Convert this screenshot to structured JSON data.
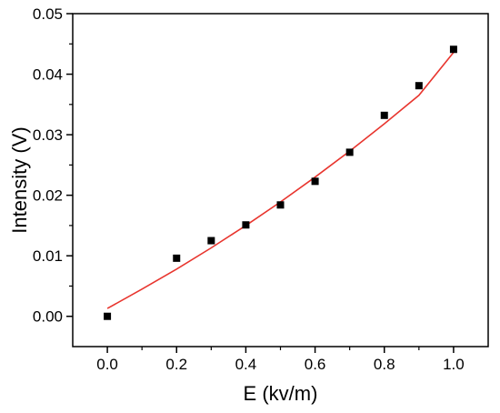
{
  "chart_data": {
    "type": "scatter",
    "xlabel": "E (kv/m)",
    "ylabel": "Intensity (V)",
    "xlim": [
      -0.1,
      1.1
    ],
    "ylim": [
      -0.005,
      0.05
    ],
    "x_ticks": [
      0.0,
      0.2,
      0.4,
      0.6,
      0.8,
      1.0
    ],
    "x_tick_labels": [
      "0.0",
      "0.2",
      "0.4",
      "0.6",
      "0.8",
      "1.0"
    ],
    "y_ticks": [
      0.0,
      0.01,
      0.02,
      0.03,
      0.04,
      0.05
    ],
    "y_tick_labels": [
      "0.00",
      "0.01",
      "0.02",
      "0.03",
      "0.04",
      "0.05"
    ],
    "grid": false,
    "points": {
      "x": [
        0.0,
        0.2,
        0.3,
        0.4,
        0.5,
        0.6,
        0.7,
        0.8,
        0.9,
        1.0
      ],
      "y": [
        0.0,
        0.0096,
        0.0125,
        0.0151,
        0.0184,
        0.0223,
        0.0271,
        0.0332,
        0.0381,
        0.0441
      ],
      "color": "#000000",
      "marker": "square"
    },
    "fit_curve": {
      "x": [
        0.0,
        0.1,
        0.2,
        0.3,
        0.4,
        0.5,
        0.6,
        0.7,
        0.8,
        0.9,
        1.0
      ],
      "y": [
        0.0013,
        0.0045,
        0.0078,
        0.0113,
        0.015,
        0.0189,
        0.023,
        0.0273,
        0.0318,
        0.0365,
        0.0436
      ],
      "color": "#e8352e"
    }
  }
}
